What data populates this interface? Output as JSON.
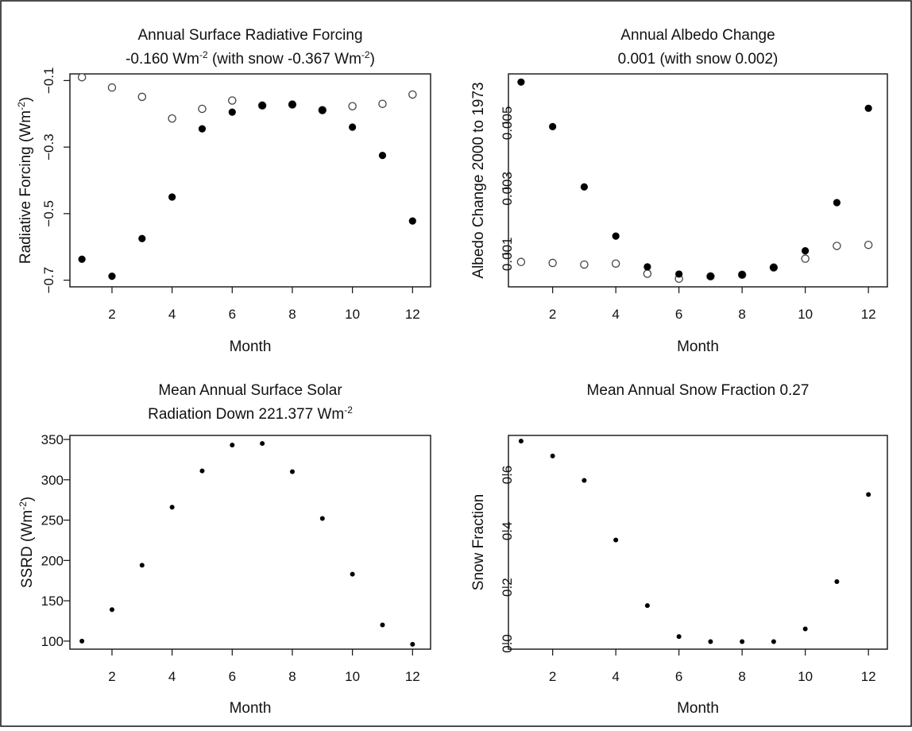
{
  "colors": {
    "frame": "#111111",
    "background": "#ffffff",
    "filled_marker": "#000000",
    "open_marker": "#444444"
  },
  "chart_data": [
    {
      "type": "scatter",
      "title_lines": [
        {
          "segments": [
            {
              "t": "Annual Surface Radiative Forcing"
            }
          ]
        },
        {
          "segments": [
            {
              "t": "-0.160 Wm"
            },
            {
              "t": "-2",
              "sup": true
            },
            {
              "t": " (with snow -0.367 Wm"
            },
            {
              "t": "-2",
              "sup": true
            },
            {
              "t": ")"
            }
          ]
        }
      ],
      "xlabel": "Month",
      "ylabel": [
        {
          "t": "Radiative Forcing (Wm"
        },
        {
          "t": "-2",
          "sup": true
        },
        {
          "t": ")"
        }
      ],
      "xlim": [
        0.6,
        12.6
      ],
      "ylim": [
        -0.72,
        -0.08
      ],
      "xticks": [
        2,
        4,
        6,
        8,
        10,
        12
      ],
      "xtick_labels": [
        "2",
        "4",
        "6",
        "8",
        "10",
        "12"
      ],
      "yticks": [
        -0.7,
        -0.5,
        -0.3,
        -0.1
      ],
      "ytick_labels": [
        "−0.7",
        "−0.5",
        "−0.3",
        "−0.1"
      ],
      "ytick_rotated": true,
      "series": [
        {
          "marker": "open",
          "x": [
            1,
            2,
            3,
            4,
            5,
            6,
            7,
            8,
            9,
            10,
            11,
            12
          ],
          "y": [
            -0.09,
            -0.121,
            -0.149,
            -0.214,
            -0.185,
            -0.16,
            -0.175,
            -0.172,
            -0.189,
            -0.177,
            -0.17,
            -0.142
          ]
        },
        {
          "marker": "filled",
          "x": [
            1,
            2,
            3,
            4,
            5,
            6,
            7,
            8,
            9,
            10,
            11,
            12
          ],
          "y": [
            -0.637,
            -0.688,
            -0.575,
            -0.45,
            -0.245,
            -0.195,
            -0.175,
            -0.172,
            -0.189,
            -0.24,
            -0.325,
            -0.522
          ]
        }
      ]
    },
    {
      "type": "scatter",
      "title_lines": [
        {
          "segments": [
            {
              "t": "Annual Albedo Change"
            }
          ]
        },
        {
          "segments": [
            {
              "t": "0.001 (with snow 0.002)"
            }
          ]
        }
      ],
      "xlabel": "Month",
      "ylabel": [
        {
          "t": "Albedo Change 2000 to 1973"
        }
      ],
      "xlim": [
        0.6,
        12.6
      ],
      "ylim": [
        0.0,
        0.0065
      ],
      "xticks": [
        2,
        4,
        6,
        8,
        10,
        12
      ],
      "xtick_labels": [
        "2",
        "4",
        "6",
        "8",
        "10",
        "12"
      ],
      "yticks": [
        0.001,
        0.003,
        0.005
      ],
      "ytick_labels": [
        "0.001",
        "0.003",
        "0.005"
      ],
      "ytick_rotated": true,
      "series": [
        {
          "marker": "open",
          "x": [
            1,
            2,
            3,
            4,
            5,
            6,
            7,
            8,
            9,
            10,
            11,
            12
          ],
          "y": [
            0.00076,
            0.00073,
            0.00068,
            0.00071,
            0.0004,
            0.00025,
            0.00032,
            0.00037,
            0.00059,
            0.00086,
            0.00125,
            0.00128
          ]
        },
        {
          "marker": "filled",
          "x": [
            1,
            2,
            3,
            4,
            5,
            6,
            7,
            8,
            9,
            10,
            11,
            12
          ],
          "y": [
            0.00625,
            0.00489,
            0.00305,
            0.00155,
            0.00061,
            0.00039,
            0.00032,
            0.00037,
            0.00059,
            0.0011,
            0.00257,
            0.00545
          ]
        }
      ]
    },
    {
      "type": "scatter",
      "title_lines": [
        {
          "segments": [
            {
              "t": "Mean Annual Surface Solar"
            }
          ]
        },
        {
          "segments": [
            {
              "t": "Radiation Down 221.377 Wm"
            },
            {
              "t": "-2",
              "sup": true
            }
          ]
        }
      ],
      "xlabel": "Month",
      "ylabel": [
        {
          "t": "SSRD (Wm"
        },
        {
          "t": "-2",
          "sup": true
        },
        {
          "t": ")"
        }
      ],
      "xlim": [
        0.6,
        12.6
      ],
      "ylim": [
        90,
        355
      ],
      "xticks": [
        2,
        4,
        6,
        8,
        10,
        12
      ],
      "xtick_labels": [
        "2",
        "4",
        "6",
        "8",
        "10",
        "12"
      ],
      "yticks": [
        100,
        150,
        200,
        250,
        300,
        350
      ],
      "ytick_labels": [
        "100",
        "150",
        "200",
        "250",
        "300",
        "350"
      ],
      "ytick_rotated": false,
      "series": [
        {
          "marker": "small",
          "x": [
            1,
            2,
            3,
            4,
            5,
            6,
            7,
            8,
            9,
            10,
            11,
            12
          ],
          "y": [
            100,
            139,
            194,
            266,
            311,
            343,
            345,
            310,
            252,
            183,
            120,
            96
          ]
        }
      ]
    },
    {
      "type": "scatter",
      "title_lines": [
        {
          "segments": [
            {
              "t": "Mean Annual Snow Fraction 0.27"
            }
          ]
        }
      ],
      "xlabel": "Month",
      "ylabel": [
        {
          "t": "Snow Fraction"
        }
      ],
      "xlim": [
        0.6,
        12.6
      ],
      "ylim": [
        -0.02,
        0.74
      ],
      "xticks": [
        2,
        4,
        6,
        8,
        10,
        12
      ],
      "xtick_labels": [
        "2",
        "4",
        "6",
        "8",
        "10",
        "12"
      ],
      "yticks": [
        0.0,
        0.2,
        0.4,
        0.6
      ],
      "ytick_labels": [
        "0.0",
        "0.2",
        "0.4",
        "0.6"
      ],
      "ytick_rotated": true,
      "series": [
        {
          "marker": "small",
          "x": [
            1,
            2,
            3,
            4,
            5,
            6,
            7,
            8,
            9,
            10,
            11,
            12
          ],
          "y": [
            0.72,
            0.667,
            0.58,
            0.368,
            0.135,
            0.025,
            0.007,
            0.007,
            0.007,
            0.052,
            0.22,
            0.53
          ]
        }
      ]
    }
  ]
}
